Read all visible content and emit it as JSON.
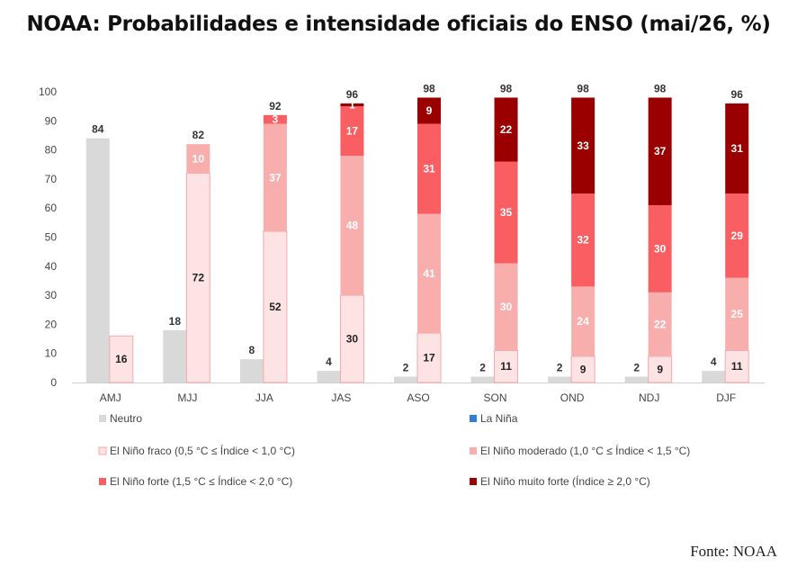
{
  "title": "NOAA: Probabilidades e intensidade oficiais do ENSO (mai/26, %)",
  "source": "Fonte: NOAA",
  "chart_data": {
    "type": "bar",
    "categories": [
      "AMJ",
      "MJJ",
      "JJA",
      "JAS",
      "ASO",
      "SON",
      "OND",
      "NDJ",
      "DJF"
    ],
    "ylim": [
      0,
      100
    ],
    "yticks": [
      0,
      10,
      20,
      30,
      40,
      50,
      60,
      70,
      80,
      90,
      100
    ],
    "grid": false,
    "legend_position": "bottom",
    "neutral": {
      "name": "Neutro",
      "color": "#d9d9d9",
      "values": [
        84,
        18,
        8,
        4,
        2,
        2,
        2,
        2,
        4
      ]
    },
    "la_nina": {
      "name": "La Niña",
      "color": "#2f7fd6",
      "values": [
        0,
        0,
        0,
        0,
        0,
        0,
        0,
        0,
        0
      ]
    },
    "el_nino_series": [
      {
        "name": "El Niño fraco (0,5 °C ≤ Índice < 1,0 °C)",
        "color": "#fde3e4",
        "label_color": "#222222",
        "values": [
          16,
          72,
          52,
          30,
          17,
          11,
          9,
          9,
          11
        ]
      },
      {
        "name": "El Niño moderado (1,0 °C ≤ Índice < 1,5 °C)",
        "color": "#f9aeae",
        "label_color": "#ffffff",
        "values": [
          0,
          10,
          37,
          48,
          41,
          30,
          24,
          22,
          25
        ]
      },
      {
        "name": "El Niño forte (1,5 °C ≤ Índice < 2,0 °C)",
        "color": "#f95f62",
        "label_color": "#ffffff",
        "values": [
          0,
          0,
          3,
          17,
          31,
          35,
          32,
          30,
          29
        ]
      },
      {
        "name": "El Niño muito forte (Índice ≥ 2,0 °C)",
        "color": "#9b0000",
        "label_color": "#ffffff",
        "values": [
          0,
          0,
          0,
          1,
          9,
          22,
          33,
          37,
          31
        ]
      }
    ],
    "el_nino_totals": [
      16,
      82,
      92,
      96,
      98,
      98,
      98,
      98,
      96
    ]
  }
}
